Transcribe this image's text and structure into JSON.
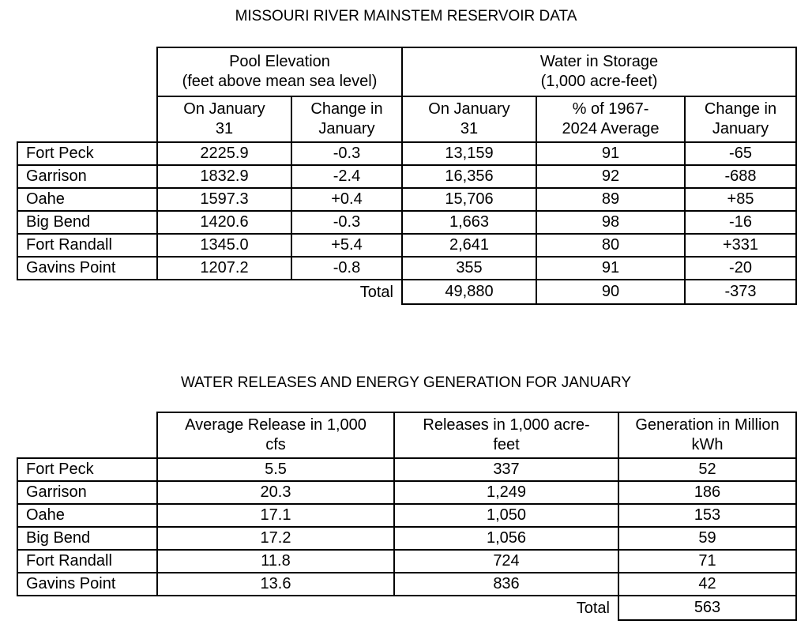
{
  "reservoir": {
    "title": "MISSOURI RIVER MAINSTEM RESERVOIR DATA",
    "group_headers": {
      "pool_elevation": {
        "line1": "Pool Elevation",
        "line2": "(feet above mean sea level)"
      },
      "water_storage": {
        "line1": "Water in Storage",
        "line2": "(1,000 acre-feet)"
      }
    },
    "col_headers": {
      "elev_on": {
        "line1": "On January",
        "line2": "31"
      },
      "elev_change": {
        "line1": "Change in",
        "line2": "January"
      },
      "stor_on": {
        "line1": "On January",
        "line2": "31"
      },
      "stor_pct": {
        "line1": "% of 1967-",
        "line2": "2024 Average"
      },
      "stor_change": {
        "line1": "Change in",
        "line2": "January"
      }
    },
    "rows": [
      {
        "name": "Fort Peck",
        "elev": "2225.9",
        "elev_change": "-0.3",
        "storage": "13,159",
        "pct": "91",
        "stor_change": "-65"
      },
      {
        "name": "Garrison",
        "elev": "1832.9",
        "elev_change": "-2.4",
        "storage": "16,356",
        "pct": "92",
        "stor_change": "-688"
      },
      {
        "name": "Oahe",
        "elev": "1597.3",
        "elev_change": "+0.4",
        "storage": "15,706",
        "pct": "89",
        "stor_change": "+85"
      },
      {
        "name": "Big Bend",
        "elev": "1420.6",
        "elev_change": "-0.3",
        "storage": "1,663",
        "pct": "98",
        "stor_change": "-16"
      },
      {
        "name": "Fort Randall",
        "elev": "1345.0",
        "elev_change": "+5.4",
        "storage": "2,641",
        "pct": "80",
        "stor_change": "+331"
      },
      {
        "name": "Gavins Point",
        "elev": "1207.2",
        "elev_change": "-0.8",
        "storage": "355",
        "pct": "91",
        "stor_change": "-20"
      }
    ],
    "total": {
      "label": "Total",
      "storage": "49,880",
      "pct": "90",
      "stor_change": "-373"
    }
  },
  "releases": {
    "title": "WATER RELEASES AND ENERGY GENERATION FOR JANUARY",
    "col_headers": {
      "avg_release": {
        "line1": "Average Release in 1,000",
        "line2": "cfs"
      },
      "releases_af": {
        "line1": "Releases in 1,000 acre-",
        "line2": "feet"
      },
      "generation": {
        "line1": "Generation in Million",
        "line2": "kWh"
      }
    },
    "rows": [
      {
        "name": "Fort Peck",
        "avg": "5.5",
        "af": "337",
        "gen": "52"
      },
      {
        "name": "Garrison",
        "avg": "20.3",
        "af": "1,249",
        "gen": "186"
      },
      {
        "name": "Oahe",
        "avg": "17.1",
        "af": "1,050",
        "gen": "153"
      },
      {
        "name": "Big Bend",
        "avg": "17.2",
        "af": "1,056",
        "gen": "59"
      },
      {
        "name": "Fort Randall",
        "avg": "11.8",
        "af": "724",
        "gen": "71"
      },
      {
        "name": "Gavins Point",
        "avg": "13.6",
        "af": "836",
        "gen": "42"
      }
    ],
    "total": {
      "label": "Total",
      "gen": "563"
    }
  }
}
